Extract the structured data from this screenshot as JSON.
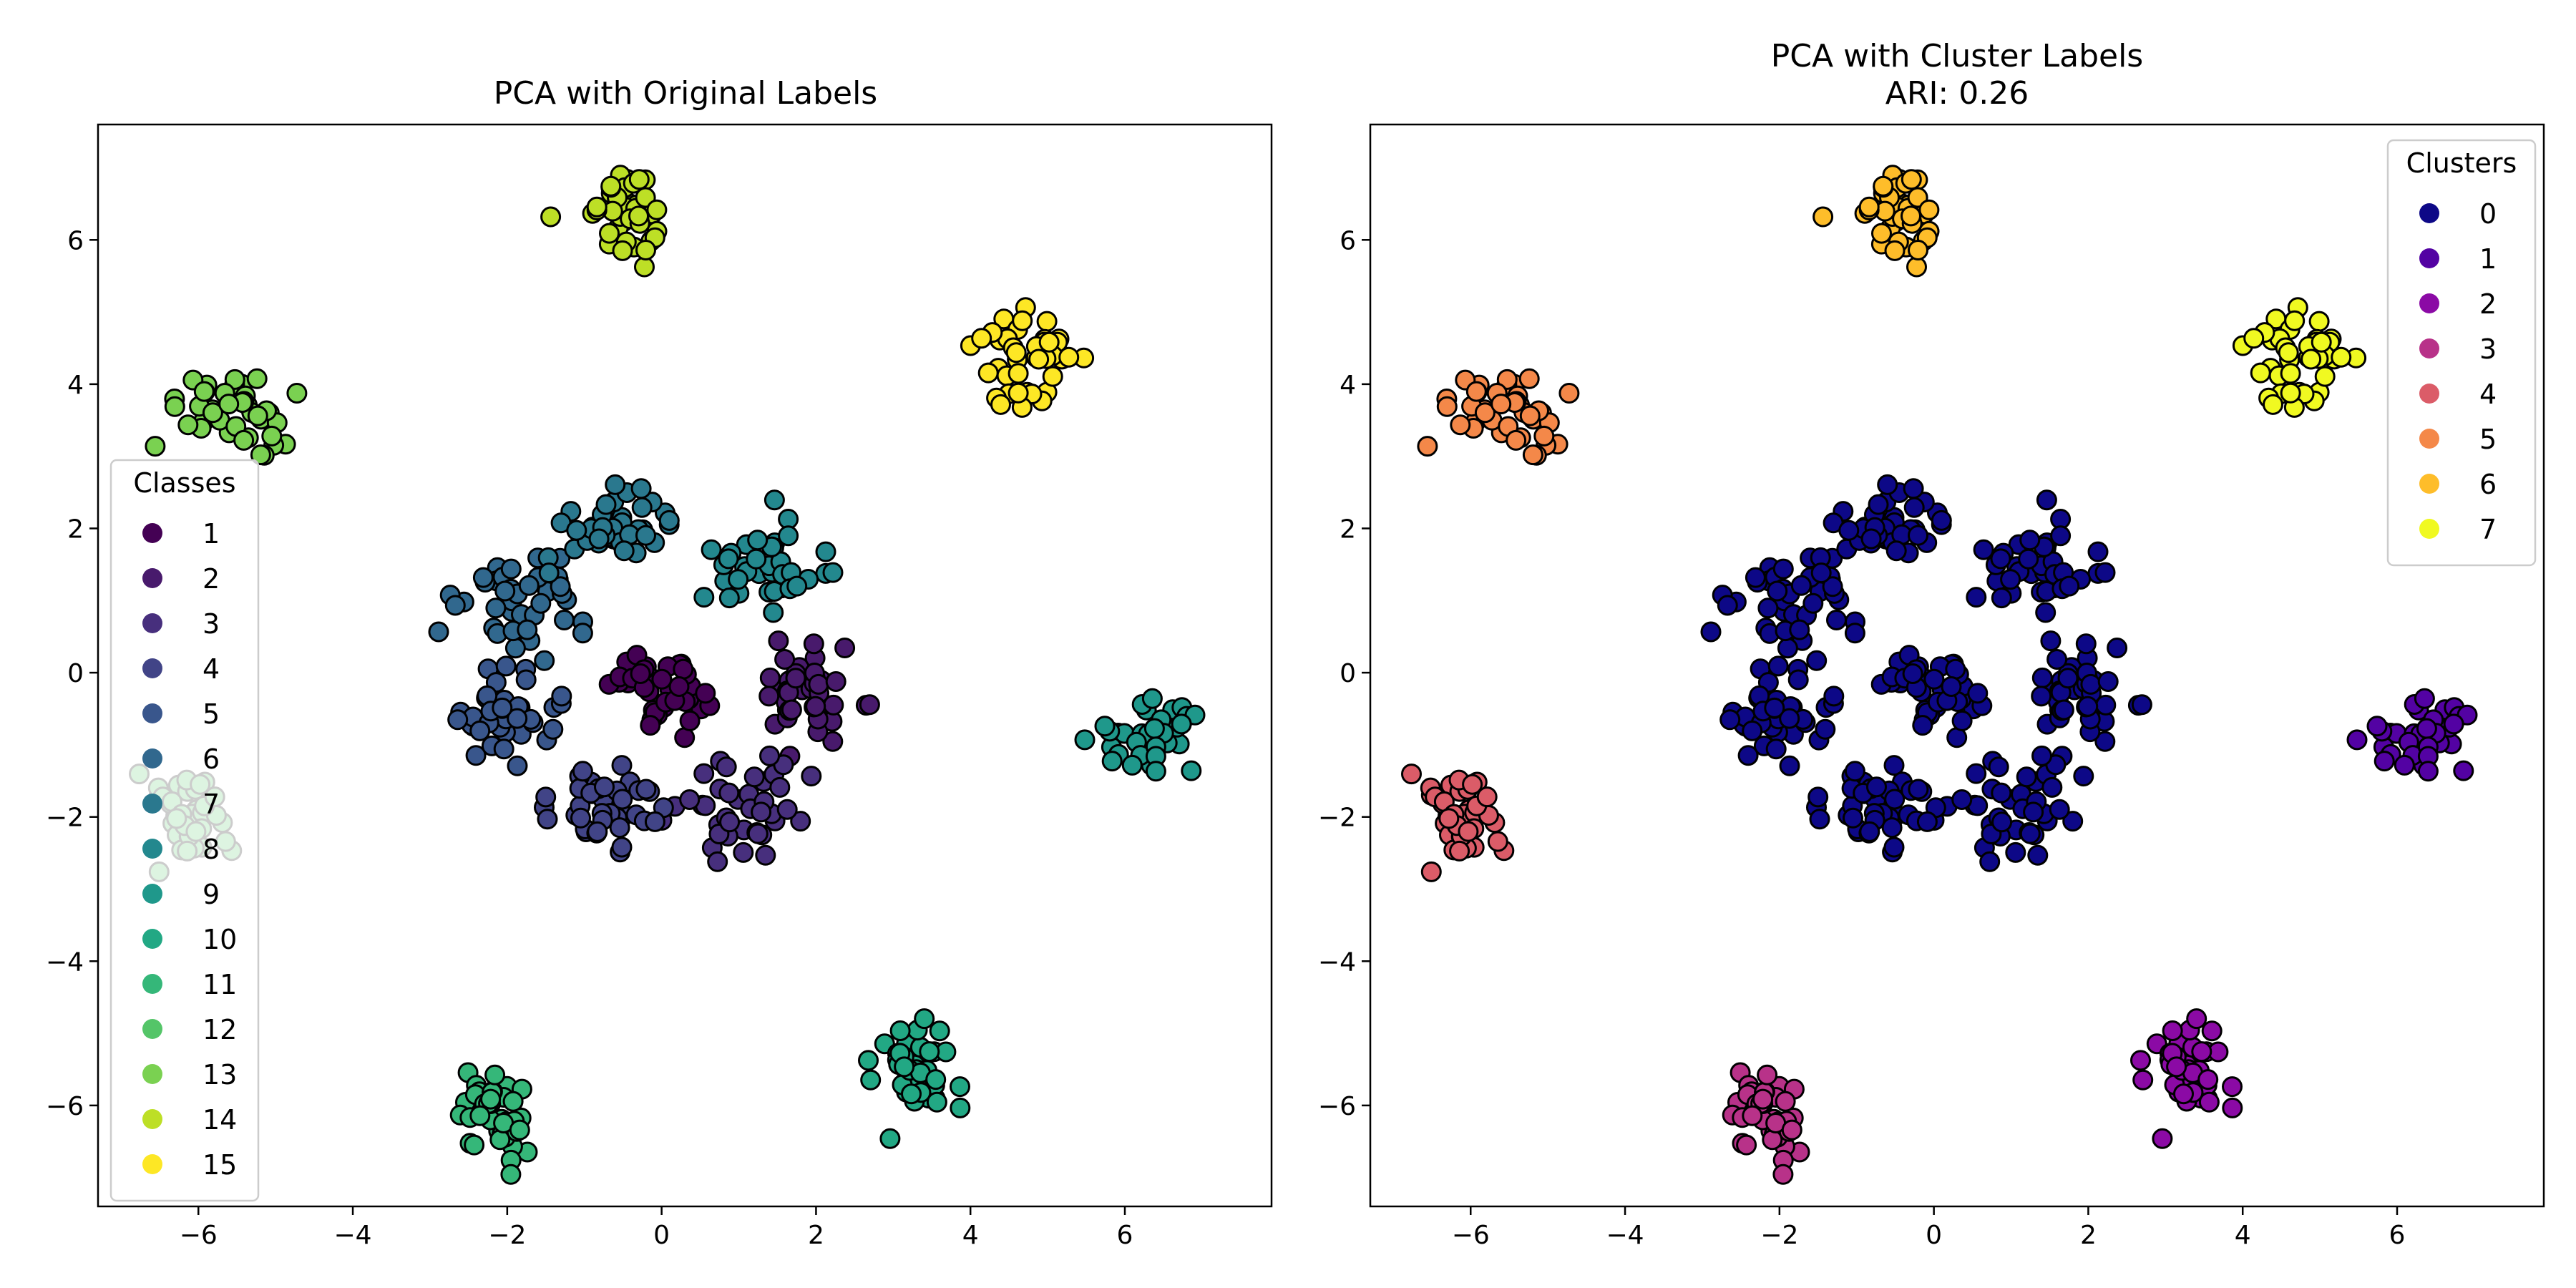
{
  "chart_data": [
    {
      "type": "scatter",
      "title": "PCA with Original Labels",
      "subtitle": "",
      "xlabel": "",
      "ylabel": "",
      "xlim": [
        -7.3,
        7.9
      ],
      "ylim": [
        -7.4,
        7.6
      ],
      "xticks": [
        -6,
        -4,
        -2,
        0,
        2,
        4,
        6
      ],
      "yticks": [
        -6,
        -4,
        -2,
        0,
        2,
        4,
        6
      ],
      "tick_labels_x": [
        "−6",
        "−4",
        "−2",
        "0",
        "2",
        "4",
        "6"
      ],
      "tick_labels_y": [
        "−6",
        "−4",
        "−2",
        "0",
        "2",
        "4",
        "6"
      ],
      "grid": false,
      "legend": {
        "title": "Classes",
        "placement": "left",
        "entries": [
          "1",
          "2",
          "3",
          "4",
          "5",
          "6",
          "7",
          "8",
          "9",
          "10",
          "11",
          "12",
          "13",
          "14",
          "15"
        ],
        "colors": [
          "#440154",
          "#481a6c",
          "#472f7d",
          "#414487",
          "#39568c",
          "#31688e",
          "#2a788e",
          "#23888e",
          "#1f988b",
          "#22a884",
          "#35b779",
          "#54c568",
          "#7ad151",
          "#bddf26",
          "#fde725"
        ]
      },
      "groups": [
        {
          "label": "1",
          "color": "#440154",
          "cx": 0.0,
          "cy": -0.2,
          "sx": 0.3,
          "sy": 0.28,
          "n": 40
        },
        {
          "label": "2",
          "color": "#481a6c",
          "cx": 1.85,
          "cy": -0.35,
          "sx": 0.35,
          "sy": 0.35,
          "n": 40
        },
        {
          "label": "3",
          "color": "#472f7d",
          "cx": 1.0,
          "cy": -1.75,
          "sx": 0.35,
          "sy": 0.4,
          "n": 40
        },
        {
          "label": "4",
          "color": "#414487",
          "cx": -0.65,
          "cy": -1.8,
          "sx": 0.45,
          "sy": 0.3,
          "n": 40
        },
        {
          "label": "5",
          "color": "#39568c",
          "cx": -2.05,
          "cy": -0.6,
          "sx": 0.35,
          "sy": 0.35,
          "n": 40
        },
        {
          "label": "6",
          "color": "#31688e",
          "cx": -1.85,
          "cy": 1.1,
          "sx": 0.45,
          "sy": 0.4,
          "n": 40
        },
        {
          "label": "7",
          "color": "#2a788e",
          "cx": -0.5,
          "cy": 2.05,
          "sx": 0.4,
          "sy": 0.25,
          "n": 40
        },
        {
          "label": "8",
          "color": "#23888e",
          "cx": 1.3,
          "cy": 1.45,
          "sx": 0.4,
          "sy": 0.35,
          "n": 40
        },
        {
          "label": "9",
          "color": "#1f988b",
          "cx": 6.35,
          "cy": -0.85,
          "sx": 0.3,
          "sy": 0.3,
          "n": 40
        },
        {
          "label": "10",
          "color": "#22a884",
          "cx": 3.3,
          "cy": -5.45,
          "sx": 0.25,
          "sy": 0.3,
          "n": 40
        },
        {
          "label": "11",
          "color": "#35b779",
          "cx": -2.15,
          "cy": -6.05,
          "sx": 0.25,
          "sy": 0.3,
          "n": 40
        },
        {
          "label": "12",
          "color": "#54c568",
          "cx": -6.2,
          "cy": -2.0,
          "sx": 0.3,
          "sy": 0.3,
          "n": 40
        },
        {
          "label": "13",
          "color": "#7ad151",
          "cx": -5.45,
          "cy": 3.65,
          "sx": 0.4,
          "sy": 0.25,
          "n": 40
        },
        {
          "label": "14",
          "color": "#bddf26",
          "cx": -0.5,
          "cy": 6.4,
          "sx": 0.3,
          "sy": 0.3,
          "n": 40
        },
        {
          "label": "15",
          "color": "#fde725",
          "cx": 4.7,
          "cy": 4.35,
          "sx": 0.3,
          "sy": 0.35,
          "n": 40
        }
      ]
    },
    {
      "type": "scatter",
      "title": "PCA with Cluster Labels",
      "subtitle": "ARI: 0.26",
      "xlabel": "",
      "ylabel": "",
      "xlim": [
        -7.3,
        7.9
      ],
      "ylim": [
        -7.4,
        7.6
      ],
      "xticks": [
        -6,
        -4,
        -2,
        0,
        2,
        4,
        6
      ],
      "yticks": [
        -6,
        -4,
        -2,
        0,
        2,
        4,
        6
      ],
      "tick_labels_x": [
        "−6",
        "−4",
        "−2",
        "0",
        "2",
        "4",
        "6"
      ],
      "tick_labels_y": [
        "−6",
        "−4",
        "−2",
        "0",
        "2",
        "4",
        "6"
      ],
      "grid": false,
      "legend": {
        "title": "Clusters",
        "placement": "top-right",
        "entries": [
          "0",
          "1",
          "2",
          "3",
          "4",
          "5",
          "6",
          "7"
        ],
        "colors": [
          "#0d0887",
          "#5302a3",
          "#8b0aa5",
          "#b83289",
          "#db5c68",
          "#f48849",
          "#febd2a",
          "#f0f921"
        ]
      },
      "groups": [
        {
          "label": "0",
          "color": "#0d0887",
          "cx": 0.0,
          "cy": -0.2,
          "sx": 0.3,
          "sy": 0.28,
          "n": 40
        },
        {
          "label": "0",
          "color": "#0d0887",
          "cx": 1.85,
          "cy": -0.35,
          "sx": 0.35,
          "sy": 0.35,
          "n": 40
        },
        {
          "label": "0",
          "color": "#0d0887",
          "cx": 1.0,
          "cy": -1.75,
          "sx": 0.35,
          "sy": 0.4,
          "n": 40
        },
        {
          "label": "0",
          "color": "#0d0887",
          "cx": -0.65,
          "cy": -1.8,
          "sx": 0.45,
          "sy": 0.3,
          "n": 40
        },
        {
          "label": "0",
          "color": "#0d0887",
          "cx": -2.05,
          "cy": -0.6,
          "sx": 0.35,
          "sy": 0.35,
          "n": 40
        },
        {
          "label": "0",
          "color": "#0d0887",
          "cx": -1.85,
          "cy": 1.1,
          "sx": 0.45,
          "sy": 0.4,
          "n": 40
        },
        {
          "label": "0",
          "color": "#0d0887",
          "cx": -0.5,
          "cy": 2.05,
          "sx": 0.4,
          "sy": 0.25,
          "n": 40
        },
        {
          "label": "0",
          "color": "#0d0887",
          "cx": 1.3,
          "cy": 1.45,
          "sx": 0.4,
          "sy": 0.35,
          "n": 40
        },
        {
          "label": "1",
          "color": "#5302a3",
          "cx": 6.35,
          "cy": -0.85,
          "sx": 0.3,
          "sy": 0.3,
          "n": 40
        },
        {
          "label": "2",
          "color": "#8b0aa5",
          "cx": 3.3,
          "cy": -5.45,
          "sx": 0.25,
          "sy": 0.3,
          "n": 40
        },
        {
          "label": "3",
          "color": "#b83289",
          "cx": -2.15,
          "cy": -6.05,
          "sx": 0.25,
          "sy": 0.3,
          "n": 40
        },
        {
          "label": "4",
          "color": "#db5c68",
          "cx": -6.2,
          "cy": -2.0,
          "sx": 0.3,
          "sy": 0.3,
          "n": 40
        },
        {
          "label": "5",
          "color": "#f48849",
          "cx": -5.45,
          "cy": 3.65,
          "sx": 0.4,
          "sy": 0.25,
          "n": 40
        },
        {
          "label": "6",
          "color": "#febd2a",
          "cx": -0.5,
          "cy": 6.4,
          "sx": 0.3,
          "sy": 0.3,
          "n": 40
        },
        {
          "label": "7",
          "color": "#f0f921",
          "cx": 4.7,
          "cy": 4.35,
          "sx": 0.3,
          "sy": 0.35,
          "n": 40
        }
      ]
    }
  ]
}
